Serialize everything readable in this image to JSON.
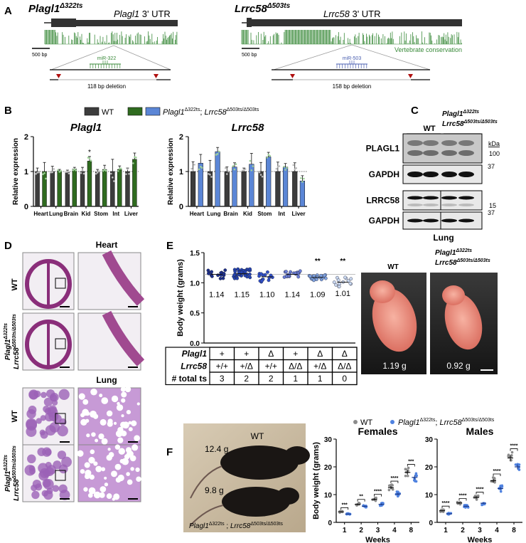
{
  "panel_labels": {
    "a": "A",
    "b": "B",
    "c": "C",
    "d": "D",
    "e": "E",
    "f": "F"
  },
  "panel_a": {
    "left": {
      "gene": "Plagl1",
      "allele": "Δ322ts",
      "utr_gene": "Plagl1",
      "utr_label": " 3' UTR",
      "scale": "500 bp",
      "mirna": "miR-322",
      "deletion": "118 bp deletion"
    },
    "right": {
      "gene": "Lrrc58",
      "allele": "Δ503ts",
      "utr_gene": "Lrrc58",
      "utr_label": " 3' UTR",
      "scale": "500 bp",
      "mirna": "miR-503",
      "deletion": "158 bp deletion"
    },
    "conservation_label": "Vertebrate conservation",
    "colors": {
      "conservation": "#3a8a3a",
      "mir322": "#3a8a3a",
      "mir503": "#4a5fb0",
      "arrow": "#b01010"
    }
  },
  "legend_b": {
    "wt": "WT",
    "mut_gene1": "Plagl1",
    "mut_allele1": "Δ322ts",
    "sep": "; ",
    "mut_gene2": "Lrrc58",
    "mut_allele2": "Δ503ts/Δ503ts"
  },
  "chart_data": [
    {
      "type": "bar",
      "title": "Plagl1",
      "ylabel": "Relative expression",
      "ylim": [
        0,
        2
      ],
      "yticks": [
        "0",
        "1",
        "2"
      ],
      "categories": [
        "Heart",
        "Lung",
        "Brain",
        "Kid",
        "Stom",
        "Int",
        "Liver"
      ],
      "series": [
        {
          "name": "WT",
          "color": "#3c3c3c",
          "values": [
            1.0,
            1.0,
            0.98,
            1.0,
            0.98,
            1.0,
            1.0
          ],
          "errors": [
            0.1,
            0.15,
            0.06,
            0.12,
            0.08,
            0.35,
            0.1
          ]
        },
        {
          "name": "Plagl1Δ322ts; Lrrc58Δ503ts/Δ503ts",
          "color": "#2f6b1f",
          "values": [
            1.0,
            1.02,
            1.07,
            1.3,
            1.06,
            1.06,
            1.35
          ],
          "errors": [
            0.26,
            0.04,
            0.05,
            0.13,
            0.12,
            0.1,
            0.18
          ]
        }
      ],
      "annotations": [
        {
          "category": "Kid",
          "text": "*"
        }
      ],
      "reference_line": 1
    },
    {
      "type": "bar",
      "title": "Lrrc58",
      "ylabel": "Relative expression",
      "ylim": [
        0,
        2
      ],
      "yticks": [
        "0",
        "1",
        "2"
      ],
      "categories": [
        "Heart",
        "Lung",
        "Brain",
        "Kid",
        "Stom",
        "Int",
        "Liver"
      ],
      "series": [
        {
          "name": "WT",
          "color": "#3c3c3c",
          "values": [
            1.0,
            1.0,
            1.0,
            1.0,
            1.0,
            1.0,
            1.0
          ],
          "errors": [
            0.28,
            0.32,
            0.13,
            0.1,
            0.26,
            0.27,
            0.25
          ],
          "dummy": 0
        },
        {
          "name": "Plagl1Δ322ts; Lrrc58Δ503ts/Δ503ts",
          "color": "#5b86d6",
          "values": [
            1.24,
            1.57,
            1.13,
            1.21,
            1.42,
            1.13,
            0.73
          ],
          "errors": [
            0.25,
            0.12,
            0.12,
            0.31,
            0.13,
            0.1,
            0.15
          ]
        }
      ],
      "reference_line": 1
    },
    {
      "type": "scatter",
      "ylabel": "Body weight (grams)",
      "ylim": [
        0,
        1.5
      ],
      "yticks": [
        "0.0",
        "0.5",
        "1.0",
        "1.5"
      ],
      "groups": [
        {
          "mean": 1.14,
          "n": 16,
          "spread": 0.07,
          "color": "#1c2f8a",
          "sig": ""
        },
        {
          "mean": 1.15,
          "n": 40,
          "spread": 0.08,
          "color": "#2443b0",
          "sig": ""
        },
        {
          "mean": 1.1,
          "n": 16,
          "spread": 0.09,
          "color": "#3050c8",
          "sig": ""
        },
        {
          "mean": 1.14,
          "n": 22,
          "spread": 0.06,
          "color": "#6b7fd8",
          "sig": ""
        },
        {
          "mean": 1.09,
          "n": 24,
          "spread": 0.05,
          "color": "#7fa3e0",
          "sig": "**"
        },
        {
          "mean": 1.01,
          "n": 14,
          "spread": 0.08,
          "color": "#c9d8f0",
          "sig": "**"
        }
      ],
      "mean_labels": [
        "1.14",
        "1.15",
        "1.10",
        "1.14",
        "1.09",
        "1.01"
      ],
      "reference_line": 1.14
    },
    {
      "type": "scatter",
      "title": "Females",
      "xlabel": "Weeks",
      "ylabel": "Body weight (grams)",
      "ylim": [
        0,
        30
      ],
      "yticks": [
        "0",
        "10",
        "20",
        "30"
      ],
      "categories": [
        "1",
        "2",
        "3",
        "4",
        "8"
      ],
      "series": [
        {
          "name": "WT",
          "color": "#8c8c8c",
          "values": [
            3.8,
            6.5,
            8.3,
            12.5,
            18.0
          ]
        },
        {
          "name": "Plagl1Δ322ts; Lrrc58Δ503ts/Δ503ts",
          "color": "#4f82e0",
          "values": [
            3.0,
            5.8,
            6.5,
            10.2,
            16.2
          ]
        }
      ],
      "significance": [
        "***",
        "**",
        "****",
        "****",
        "***"
      ]
    },
    {
      "type": "scatter",
      "title": "Males",
      "xlabel": "Weeks",
      "ylabel": "",
      "ylim": [
        0,
        30
      ],
      "yticks": [
        "0",
        "10",
        "20",
        "30"
      ],
      "categories": [
        "1",
        "2",
        "3",
        "4",
        "8"
      ],
      "series": [
        {
          "name": "WT",
          "color": "#8c8c8c",
          "values": [
            4.2,
            7.0,
            9.0,
            15.0,
            23.2
          ]
        },
        {
          "name": "Plagl1Δ322ts; Lrrc58Δ503ts/Δ503ts",
          "color": "#4f82e0",
          "values": [
            3.1,
            5.8,
            6.9,
            12.2,
            20.0
          ]
        }
      ],
      "significance": [
        "****",
        "****",
        "****",
        "****",
        "****"
      ]
    }
  ],
  "panel_c": {
    "wt": "WT",
    "mut_gene1": "Plagl1",
    "mut_allele1": "Δ322ts",
    "mut_gene2": "Lrrc58",
    "mut_allele2": "Δ503ts/Δ503ts",
    "blots": [
      "PLAGL1",
      "GAPDH",
      "LRRC58",
      "GAPDH"
    ],
    "kda": "kDa",
    "markers": [
      "100",
      "37",
      "15",
      "37"
    ],
    "tissue": "Lung"
  },
  "panel_d": {
    "heart": "Heart",
    "lung": "Lung",
    "wt": "WT",
    "mut_gene1": "Plagl1",
    "mut_allele1": "Δ322ts",
    "mut_gene2": "Lrrc58",
    "mut_allele2": "Δ503ts/Δ503ts"
  },
  "panel_e_table": {
    "rows": [
      {
        "label": "Plagl1",
        "cells": [
          "+",
          "+",
          "Δ",
          "+",
          "Δ",
          "Δ"
        ]
      },
      {
        "label": "Lrrc58",
        "cells": [
          "+/+",
          "+/Δ",
          "+/+",
          "Δ/Δ",
          "+/Δ",
          "Δ/Δ"
        ]
      },
      {
        "label": "# total ts",
        "cells": [
          "3",
          "2",
          "2",
          "1",
          "1",
          "0"
        ]
      }
    ]
  },
  "panel_e_pups": {
    "wt": "WT",
    "mut_gene1": "Plagl1",
    "mut_allele1": "Δ322ts",
    "mut_gene2": "Lrrc58",
    "mut_allele2": "Δ503ts/Δ503ts",
    "wt_weight": "1.19 g",
    "mut_weight": "0.92 g"
  },
  "panel_f": {
    "photo_wt": "WT",
    "wt_weight": "12.4 g",
    "mut_weight": "9.8 g",
    "mut_gene1": "Plagl1",
    "mut_allele1": "Δ322ts",
    "sep": " ; ",
    "mut_gene2": "Lrrc58",
    "mut_allele2": "Δ503ts/Δ503ts",
    "legend_wt": "WT",
    "legend_mut_gene1": "Plagl1",
    "legend_mut_allele1": "Δ322ts",
    "legend_sep": "; ",
    "legend_mut_gene2": "Lrrc58",
    "legend_mut_allele2": "Δ503ts/Δ503ts"
  }
}
